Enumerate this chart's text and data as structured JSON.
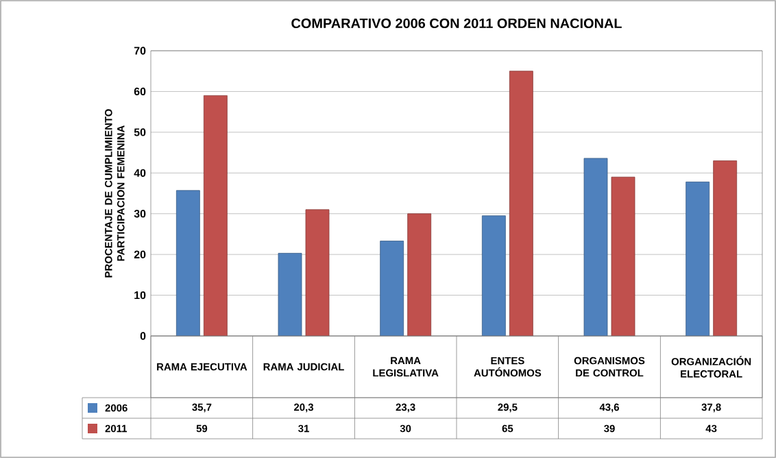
{
  "chart_data": {
    "type": "bar",
    "title": "COMPARATIVO 2006 CON 2011 ORDEN NACIONAL",
    "ylabel": "PROCENTAJE DE CUMPLIMIENTO PARTICIPACION FEMENINA",
    "categories": [
      "RAMA EJECUTIVA",
      "RAMA JUDICIAL",
      "RAMA LEGISLATIVA",
      "ENTES AUTÓNOMOS",
      "ORGANISMOS DE CONTROL",
      "ORGANIZACIÓN ELECTORAL"
    ],
    "series": [
      {
        "name": "2006",
        "color": "#4f81bd",
        "values": [
          35.7,
          20.3,
          23.3,
          29.5,
          43.6,
          37.8
        ],
        "value_labels": [
          "35,7",
          "20,3",
          "23,3",
          "29,5",
          "43,6",
          "37,8"
        ]
      },
      {
        "name": "2011",
        "color": "#c0504d",
        "values": [
          59,
          31,
          30,
          65,
          39,
          43
        ],
        "value_labels": [
          "59",
          "31",
          "30",
          "65",
          "39",
          "43"
        ]
      }
    ],
    "ylim": [
      0,
      70
    ],
    "yticks": [
      0,
      10,
      20,
      30,
      40,
      50,
      60,
      70
    ],
    "grid": "y",
    "legend": "bottom"
  }
}
